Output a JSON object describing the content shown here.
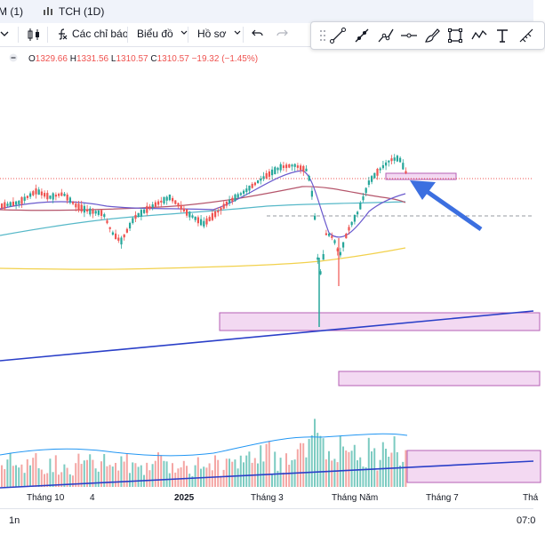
{
  "tabs": [
    {
      "label": "M (1)"
    },
    {
      "label": "TCH (1D)"
    }
  ],
  "toolbar": {
    "indicators_label": "Các chỉ báo",
    "chart_label": "Biểu đồ",
    "profile_label": "Hồ sơ"
  },
  "drawing_tools": [
    "trend-line-icon",
    "ray-icon",
    "info-line-icon",
    "cross-line-icon",
    "horizontal-line-icon",
    "brush-icon",
    "rectangle-icon",
    "path-icon",
    "text-icon",
    "measure-icon"
  ],
  "legend": {
    "o_label": "O",
    "o_value": "1329.66",
    "h_label": "H",
    "h_value": "1331.56",
    "l_label": "L",
    "l_value": "1310.57",
    "c_label": "C",
    "c_value": "1310.57",
    "change": "−19.32 (−1.45%)"
  },
  "xaxis": [
    "Tháng 10",
    "4",
    "2025",
    "Tháng 3",
    "Tháng Năm",
    "Tháng 7",
    "Thá"
  ],
  "bottom": {
    "interval": "1n",
    "time": "07:0"
  },
  "colors": {
    "up": "#26a69a",
    "down": "#ef5350",
    "zone": "#f3d9f2",
    "zone_border": "#b45fb4",
    "trend": "#2a3fc8",
    "arrow": "#3c6fe0",
    "ma_yellow": "#f2d14c",
    "ma_teal": "#56b8c8",
    "ma_purple": "#6a5acd",
    "ma_maroon": "#b5556b"
  }
}
